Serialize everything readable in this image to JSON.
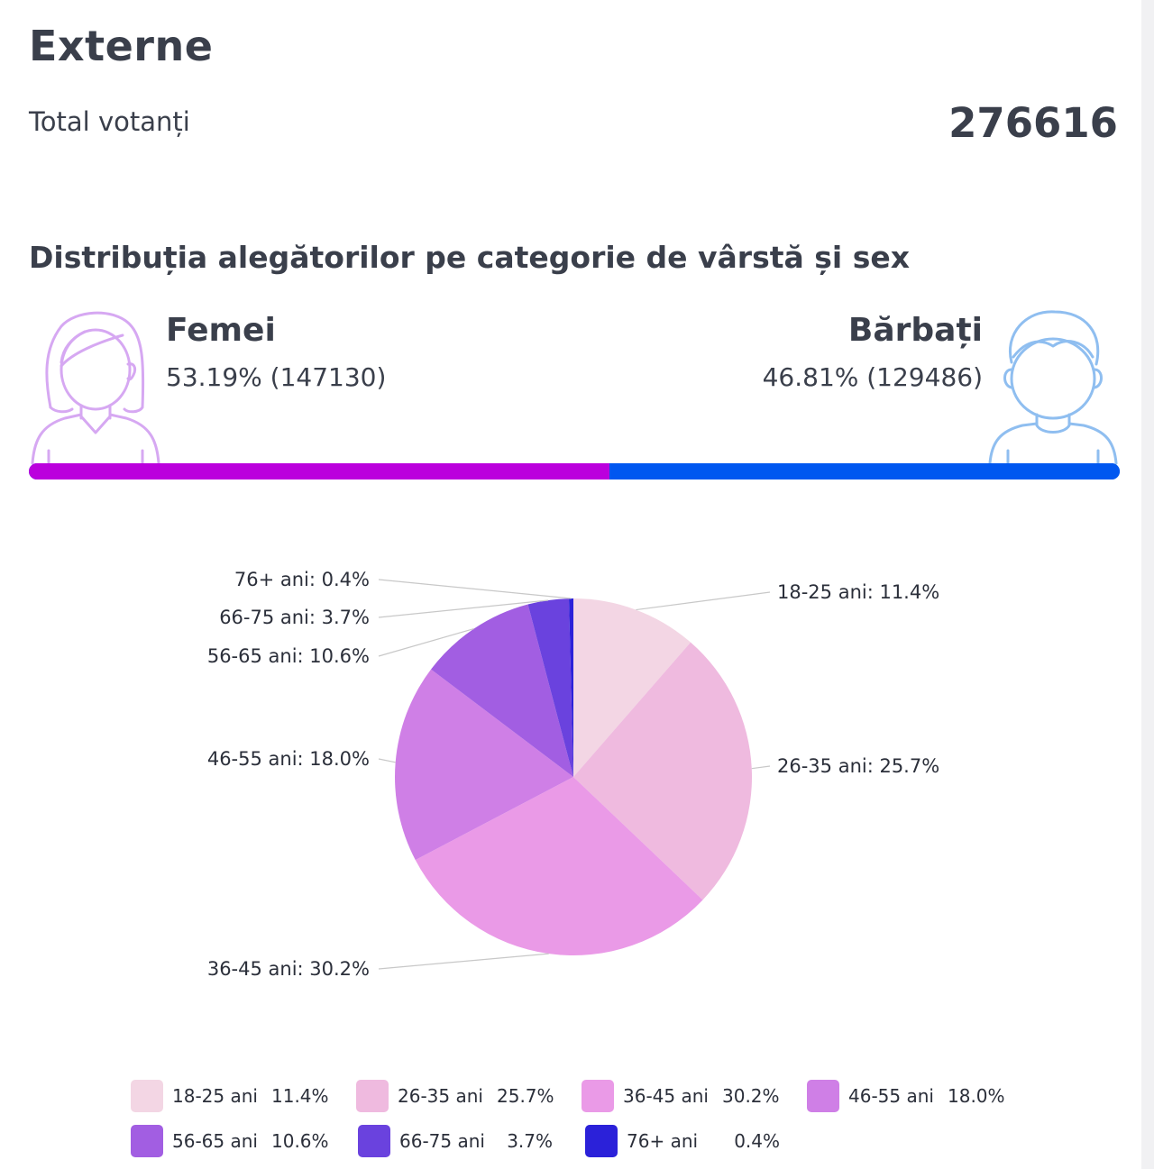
{
  "header": {
    "title": "Externe",
    "total_label": "Total votanți",
    "total_value": "276616"
  },
  "distribution": {
    "title": "Distribuția alegătorilor pe categorie de vârstă și sex",
    "female": {
      "label": "Femei",
      "stat": "53.19% (147130)",
      "percent": 53.19,
      "color": "#bb00dd"
    },
    "male": {
      "label": "Bărbați",
      "stat": "46.81% (129486)",
      "percent": 46.81,
      "color": "#0057f0"
    },
    "icons": {
      "female": "woman-avatar-icon",
      "male": "man-avatar-icon"
    }
  },
  "chart_data": {
    "type": "pie",
    "categories": [
      "18-25 ani",
      "26-35 ani",
      "36-45 ani",
      "46-55 ani",
      "56-65 ani",
      "66-75 ani",
      "76+ ani"
    ],
    "values": [
      11.4,
      25.7,
      30.2,
      18.0,
      10.6,
      3.7,
      0.4
    ],
    "value_labels": [
      "11.4%",
      "25.7%",
      "30.2%",
      "18.0%",
      "10.6%",
      "3.7%",
      "0.4%"
    ],
    "slice_labels": [
      "18-25 ani: 11.4%",
      "26-35 ani: 25.7%",
      "36-45 ani: 30.2%",
      "46-55 ani: 18.0%",
      "56-65 ani: 10.6%",
      "66-75 ani: 3.7%",
      "76+ ani: 0.4%"
    ],
    "colors": [
      "#f3d6e4",
      "#efbadf",
      "#ea9ae7",
      "#cf7fe6",
      "#a25ee2",
      "#6a42de",
      "#2b21d9"
    ],
    "legend_position": "bottom"
  }
}
